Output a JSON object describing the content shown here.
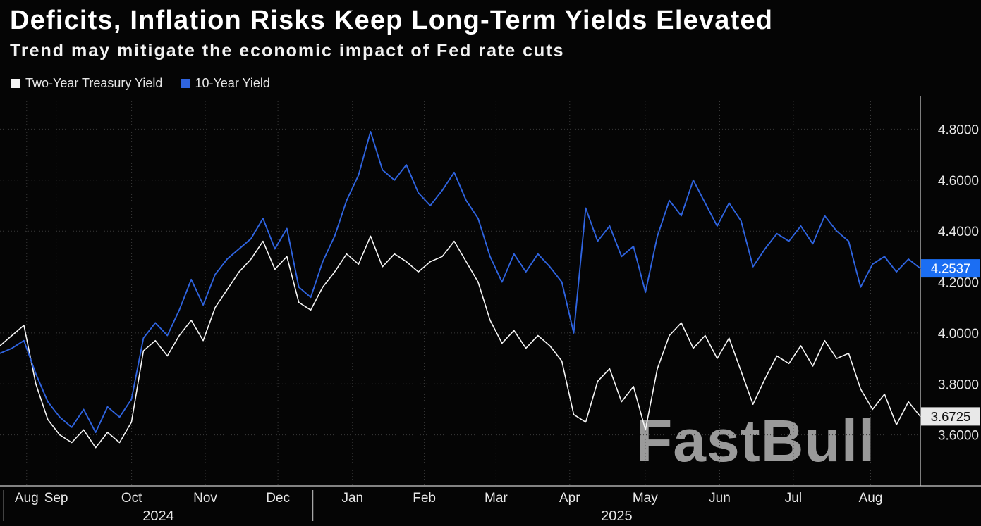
{
  "title": "Deficits, Inflation Risks Keep Long-Term Yields Elevated",
  "subtitle": "Trend may mitigate the economic impact of Fed rate cuts",
  "watermark": "FastBull",
  "chart_data": {
    "type": "line",
    "title": "Deficits, Inflation Risks Keep Long-Term Yields Elevated",
    "subtitle": "Trend may mitigate the economic impact of Fed rate cuts",
    "legend_position": "top-left",
    "grid": "dotted",
    "ylim": [
      3.4,
      4.92
    ],
    "y_ticks": [
      3.6,
      3.8,
      4.0,
      4.2,
      4.4,
      4.6,
      4.8
    ],
    "y_tick_labels": [
      "3.6000",
      "3.8000",
      "4.0000",
      "4.2000",
      "4.4000",
      "4.6000",
      "4.8000"
    ],
    "x_ticks": [
      {
        "label": "Aug",
        "pos": 0.029
      },
      {
        "label": "Sep",
        "pos": 0.061
      },
      {
        "label": "Oct",
        "pos": 0.143
      },
      {
        "label": "Nov",
        "pos": 0.223
      },
      {
        "label": "Dec",
        "pos": 0.302
      },
      {
        "label": "Jan",
        "pos": 0.383
      },
      {
        "label": "Feb",
        "pos": 0.461
      },
      {
        "label": "Mar",
        "pos": 0.539
      },
      {
        "label": "Apr",
        "pos": 0.619
      },
      {
        "label": "May",
        "pos": 0.701
      },
      {
        "label": "Jun",
        "pos": 0.782
      },
      {
        "label": "Jul",
        "pos": 0.862
      },
      {
        "label": "Aug",
        "pos": 0.946
      }
    ],
    "year_ticks": [
      {
        "label": "2024",
        "pos": 0.172
      },
      {
        "label": "2025",
        "pos": 0.67
      }
    ],
    "year_dividers": [
      0.004,
      0.34
    ],
    "colors": {
      "grid": "#3a3a3a",
      "axis": "#cfcfcf",
      "tick_label": "#e8e8e8",
      "two_year": "#f5f5f5",
      "ten_year": "#2f64e0"
    },
    "series": [
      {
        "name": "Two-Year Treasury Yield",
        "color": "#f5f5f5",
        "last_value": 3.6725,
        "values": [
          3.95,
          3.99,
          4.03,
          3.8,
          3.66,
          3.6,
          3.57,
          3.62,
          3.55,
          3.61,
          3.57,
          3.65,
          3.93,
          3.97,
          3.91,
          3.99,
          4.05,
          3.97,
          4.1,
          4.17,
          4.24,
          4.29,
          4.36,
          4.25,
          4.3,
          4.12,
          4.09,
          4.18,
          4.24,
          4.31,
          4.27,
          4.38,
          4.26,
          4.31,
          4.28,
          4.24,
          4.28,
          4.3,
          4.36,
          4.28,
          4.2,
          4.05,
          3.96,
          4.01,
          3.94,
          3.99,
          3.95,
          3.89,
          3.68,
          3.65,
          3.81,
          3.86,
          3.73,
          3.79,
          3.62,
          3.86,
          3.99,
          4.04,
          3.94,
          3.99,
          3.9,
          3.98,
          3.85,
          3.72,
          3.82,
          3.91,
          3.88,
          3.95,
          3.87,
          3.97,
          3.9,
          3.92,
          3.78,
          3.7,
          3.76,
          3.64,
          3.73,
          3.6725
        ]
      },
      {
        "name": "10-Year Yield",
        "color": "#2f64e0",
        "last_value": 4.2537,
        "values": [
          3.92,
          3.94,
          3.97,
          3.84,
          3.73,
          3.67,
          3.63,
          3.7,
          3.61,
          3.71,
          3.67,
          3.74,
          3.98,
          4.04,
          3.99,
          4.09,
          4.21,
          4.11,
          4.23,
          4.29,
          4.33,
          4.37,
          4.45,
          4.33,
          4.41,
          4.18,
          4.14,
          4.28,
          4.38,
          4.52,
          4.62,
          4.79,
          4.64,
          4.6,
          4.66,
          4.55,
          4.5,
          4.56,
          4.63,
          4.52,
          4.45,
          4.3,
          4.2,
          4.31,
          4.24,
          4.31,
          4.26,
          4.2,
          4.0,
          4.49,
          4.36,
          4.42,
          4.3,
          4.34,
          4.16,
          4.38,
          4.52,
          4.46,
          4.6,
          4.51,
          4.42,
          4.51,
          4.44,
          4.26,
          4.33,
          4.39,
          4.36,
          4.42,
          4.35,
          4.46,
          4.4,
          4.36,
          4.18,
          4.27,
          4.3,
          4.24,
          4.29,
          4.2537
        ]
      }
    ],
    "badges": [
      {
        "label": "4.2537",
        "value": 4.2537,
        "bg": "#1b6ef3",
        "fg": "#ffffff"
      },
      {
        "label": "3.6725",
        "value": 3.6725,
        "bg": "#e8e8e8",
        "fg": "#111111"
      }
    ]
  }
}
